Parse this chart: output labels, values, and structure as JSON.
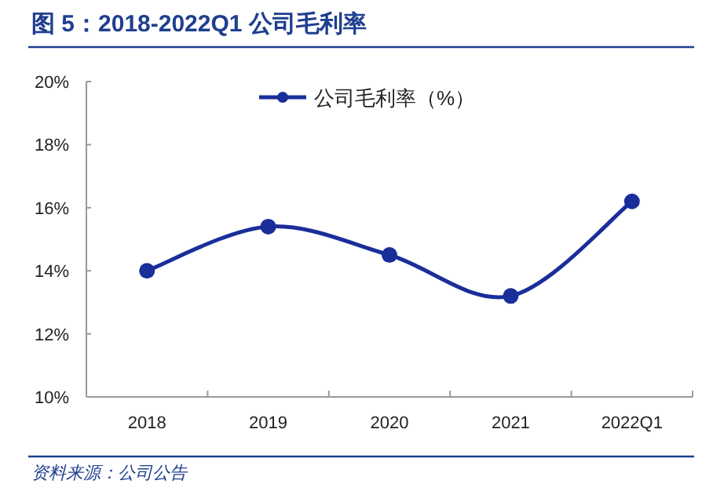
{
  "chart_data": {
    "type": "line",
    "title": "图 5：2018-2022Q1 公司毛利率",
    "categories": [
      "2018",
      "2019",
      "2020",
      "2021",
      "2022Q1"
    ],
    "series": [
      {
        "name": "公司毛利率（%）",
        "color": "#1a2e9a",
        "values": [
          14.0,
          15.4,
          14.5,
          13.2,
          16.2
        ]
      }
    ],
    "ylim": [
      10,
      20
    ],
    "yticks": [
      {
        "value": 10,
        "label": "10%"
      },
      {
        "value": 12,
        "label": "12%"
      },
      {
        "value": 14,
        "label": "14%"
      },
      {
        "value": 16,
        "label": "16%"
      },
      {
        "value": 18,
        "label": "18%"
      },
      {
        "value": 20,
        "label": "20%"
      }
    ],
    "legend": "top",
    "marker": "circle",
    "grid": false,
    "annotations": [
      "资料来源：公司公告"
    ]
  }
}
